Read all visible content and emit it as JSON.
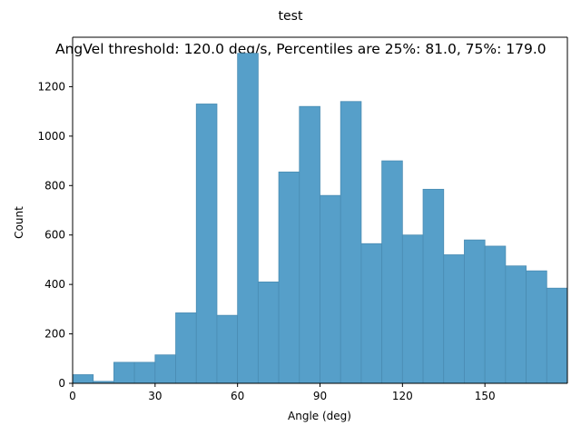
{
  "chart_data": {
    "type": "bar",
    "suptitle": "test",
    "title": "AngVel threshold: 120.0 deg/s, Percentiles are 25%: 81.0, 75%: 179.0",
    "xlabel": "Angle (deg)",
    "ylabel": "Count",
    "xlim": [
      0,
      180
    ],
    "ylim": [
      0,
      1400
    ],
    "xticks": [
      0,
      30,
      60,
      90,
      120,
      150
    ],
    "yticks": [
      0,
      200,
      400,
      600,
      800,
      1000,
      1200
    ],
    "bin_width": 7.5,
    "bins": [
      {
        "x0": 0,
        "x1": 7.5,
        "count": 35
      },
      {
        "x0": 7.5,
        "x1": 15,
        "count": 8
      },
      {
        "x0": 15,
        "x1": 22.5,
        "count": 85
      },
      {
        "x0": 22.5,
        "x1": 30,
        "count": 85
      },
      {
        "x0": 30,
        "x1": 37.5,
        "count": 115
      },
      {
        "x0": 37.5,
        "x1": 45,
        "count": 285
      },
      {
        "x0": 45,
        "x1": 52.5,
        "count": 1130
      },
      {
        "x0": 52.5,
        "x1": 60,
        "count": 275
      },
      {
        "x0": 60,
        "x1": 67.5,
        "count": 1335
      },
      {
        "x0": 67.5,
        "x1": 75,
        "count": 410
      },
      {
        "x0": 75,
        "x1": 82.5,
        "count": 855
      },
      {
        "x0": 82.5,
        "x1": 90,
        "count": 1120
      },
      {
        "x0": 90,
        "x1": 97.5,
        "count": 760
      },
      {
        "x0": 97.5,
        "x1": 105,
        "count": 1140
      },
      {
        "x0": 105,
        "x1": 112.5,
        "count": 565
      },
      {
        "x0": 112.5,
        "x1": 120,
        "count": 900
      },
      {
        "x0": 120,
        "x1": 127.5,
        "count": 600
      },
      {
        "x0": 127.5,
        "x1": 135,
        "count": 785
      },
      {
        "x0": 135,
        "x1": 142.5,
        "count": 520
      },
      {
        "x0": 142.5,
        "x1": 150,
        "count": 580
      },
      {
        "x0": 150,
        "x1": 157.5,
        "count": 555
      },
      {
        "x0": 157.5,
        "x1": 165,
        "count": 475
      },
      {
        "x0": 165,
        "x1": 172.5,
        "count": 455
      },
      {
        "x0": 172.5,
        "x1": 180,
        "count": 385
      }
    ],
    "bar_color": "#569fc9",
    "edge_color": "#4a8cb3",
    "grid": false,
    "legend": "none"
  }
}
